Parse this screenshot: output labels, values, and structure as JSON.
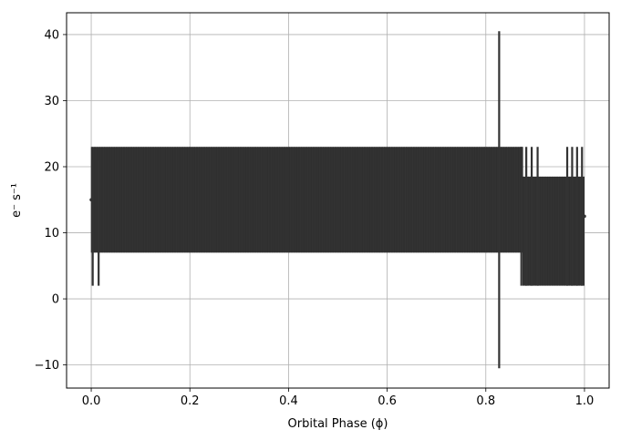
{
  "chart_data": {
    "type": "line",
    "title": "",
    "xlabel": "Orbital Phase (ϕ)",
    "ylabel": "e⁻ s⁻¹",
    "xlim": [
      -0.05,
      1.05
    ],
    "ylim": [
      -13.5,
      43.3
    ],
    "xticks": [
      0.0,
      0.2,
      0.4,
      0.6,
      0.8,
      1.0
    ],
    "xtick_labels": [
      "0.0",
      "0.2",
      "0.4",
      "0.6",
      "0.8",
      "1.0"
    ],
    "yticks": [
      -10,
      0,
      10,
      20,
      30,
      40
    ],
    "ytick_labels": [
      "−10",
      "0",
      "10",
      "20",
      "30",
      "40"
    ],
    "grid": true,
    "series": [
      {
        "color": "#333333",
        "segments": [
          {
            "x_range": [
              0.0,
              0.585
            ],
            "y_range": [
              7.0,
              23.0
            ]
          },
          {
            "x_range": [
              0.585,
              0.875
            ],
            "y_range": [
              7.0,
              23.0
            ]
          },
          {
            "x_range": [
              0.875,
              1.0
            ],
            "y_range": [
              2.0,
              18.5
            ]
          }
        ],
        "spikes": [
          {
            "x": 0.827,
            "y_min": -10.5,
            "y_max": 40.5
          },
          {
            "x": 0.003,
            "y_min": 2.0,
            "y_max": 21.0
          },
          {
            "x": 0.015,
            "y_min": 2.0,
            "y_max": 21.0
          },
          {
            "x": 0.872,
            "y_min": 2.0,
            "y_max": 23.0
          },
          {
            "x": 0.882,
            "y_min": 2.0,
            "y_max": 23.0
          },
          {
            "x": 0.893,
            "y_min": 2.0,
            "y_max": 23.0
          },
          {
            "x": 0.905,
            "y_min": 2.0,
            "y_max": 23.0
          },
          {
            "x": 0.965,
            "y_min": 2.0,
            "y_max": 23.0
          },
          {
            "x": 0.975,
            "y_min": 2.0,
            "y_max": 23.0
          },
          {
            "x": 0.985,
            "y_min": 2.0,
            "y_max": 23.0
          },
          {
            "x": 0.995,
            "y_min": 2.0,
            "y_max": 23.0
          }
        ],
        "endpoints": [
          {
            "x": 0.0,
            "y": 15.0
          },
          {
            "x": 1.0,
            "y": 12.5
          }
        ]
      }
    ]
  }
}
